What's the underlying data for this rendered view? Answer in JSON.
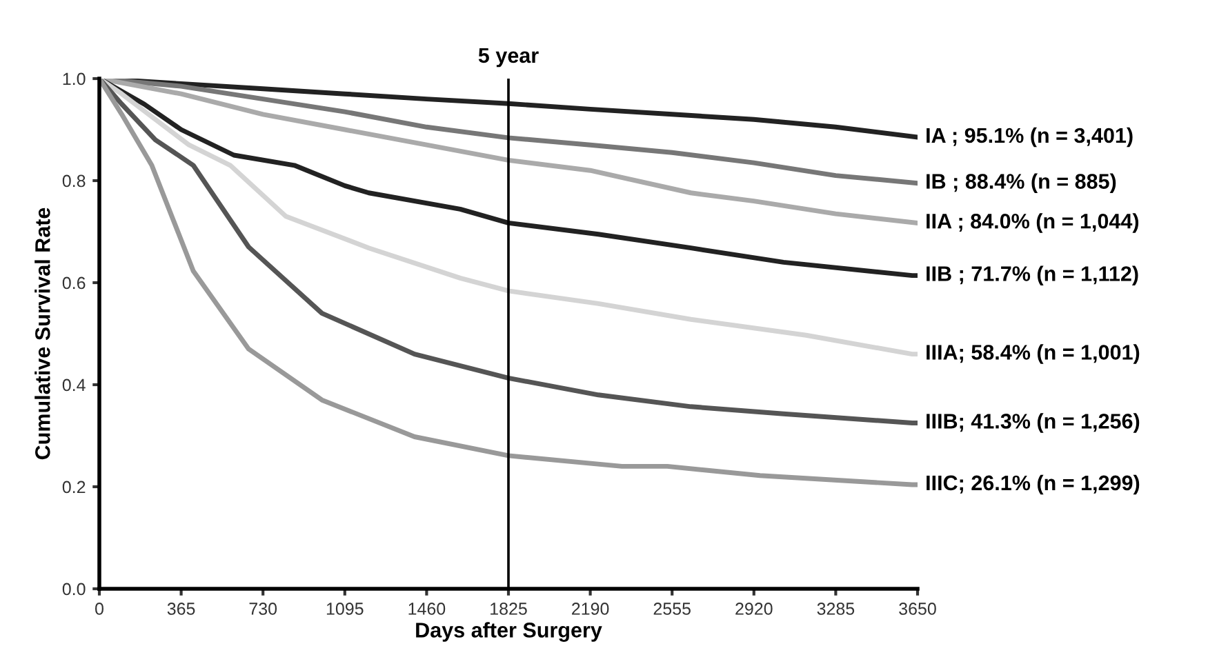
{
  "chart_data": {
    "type": "line",
    "xlabel": "Days after Surgery",
    "ylabel": "Cumulative Survival Rate",
    "xlim": [
      0,
      3650
    ],
    "ylim": [
      0,
      1.0
    ],
    "xticks": [
      0,
      365,
      730,
      1095,
      1460,
      1825,
      2190,
      2555,
      2920,
      3285,
      3650
    ],
    "yticks": [
      {
        "value": 0,
        "label": "0.0"
      },
      {
        "value": 0.2,
        "label": "0.2"
      },
      {
        "value": 0.4,
        "label": "0.4"
      },
      {
        "value": 0.6,
        "label": "0.6"
      },
      {
        "value": 0.8,
        "label": "0.8"
      },
      {
        "value": 1.0,
        "label": "1.0"
      }
    ],
    "grid": false,
    "legend": false,
    "ref_lines": [
      {
        "axis": "x",
        "value": 1825,
        "label": "5 year",
        "color": "#000000"
      }
    ],
    "series": [
      {
        "name": "IA ; 95.1% (n = 3,401)",
        "color": "#222222",
        "x": [
          0,
          365,
          730,
          1095,
          1460,
          1825,
          2190,
          2555,
          2920,
          3285,
          3650
        ],
        "values": [
          1.0,
          0.99,
          0.98,
          0.97,
          0.96,
          0.951,
          0.94,
          0.93,
          0.92,
          0.905,
          0.885
        ]
      },
      {
        "name": "IB ; 88.4% (n = 885)",
        "color": "#777777",
        "x": [
          0,
          365,
          730,
          1095,
          1460,
          1825,
          2190,
          2555,
          2920,
          3285,
          3650
        ],
        "values": [
          1.0,
          0.985,
          0.96,
          0.935,
          0.905,
          0.884,
          0.87,
          0.855,
          0.835,
          0.81,
          0.795
        ]
      },
      {
        "name": "IIA ; 84.0% (n = 1,044)",
        "color": "#aaaaaa",
        "x": [
          0,
          365,
          730,
          1095,
          1460,
          1825,
          2190,
          2639,
          2920,
          3285,
          3650
        ],
        "values": [
          1.0,
          0.97,
          0.93,
          0.9,
          0.87,
          0.84,
          0.82,
          0.776,
          0.76,
          0.735,
          0.717
        ]
      },
      {
        "name": "IIB ; 71.7% (n = 1,112)",
        "color": "#222222",
        "x": [
          0,
          200,
          365,
          600,
          870,
          1095,
          1202,
          1610,
          1825,
          2226,
          2639,
          3052,
          3626,
          3650
        ],
        "values": [
          1.0,
          0.95,
          0.9,
          0.85,
          0.83,
          0.79,
          0.776,
          0.744,
          0.717,
          0.695,
          0.668,
          0.64,
          0.614,
          0.614
        ]
      },
      {
        "name": "IIIA; 58.4% (n = 1,001)",
        "color": "#d4d4d4",
        "x": [
          0,
          100,
          250,
          400,
          584,
          832,
          1202,
          1610,
          1825,
          2226,
          2639,
          3153,
          3626,
          3650
        ],
        "values": [
          1.0,
          0.97,
          0.92,
          0.87,
          0.83,
          0.73,
          0.668,
          0.609,
          0.584,
          0.559,
          0.528,
          0.497,
          0.46,
          0.46
        ]
      },
      {
        "name": "IIIB; 41.3% (n = 1,256)",
        "color": "#555555",
        "x": [
          0,
          100,
          250,
          419,
          666,
          993,
          1406,
          1825,
          2226,
          2639,
          3052,
          3626,
          3650
        ],
        "values": [
          1.0,
          0.95,
          0.88,
          0.83,
          0.67,
          0.54,
          0.46,
          0.413,
          0.38,
          0.357,
          0.343,
          0.325,
          0.325
        ]
      },
      {
        "name": "IIIC; 26.1% (n = 1,299)",
        "color": "#999999",
        "x": [
          0,
          100,
          234,
          419,
          666,
          993,
          1406,
          1825,
          2331,
          2534,
          2947,
          3626,
          3650
        ],
        "values": [
          1.0,
          0.93,
          0.83,
          0.623,
          0.47,
          0.37,
          0.298,
          0.261,
          0.24,
          0.24,
          0.222,
          0.204,
          0.204
        ]
      }
    ]
  }
}
